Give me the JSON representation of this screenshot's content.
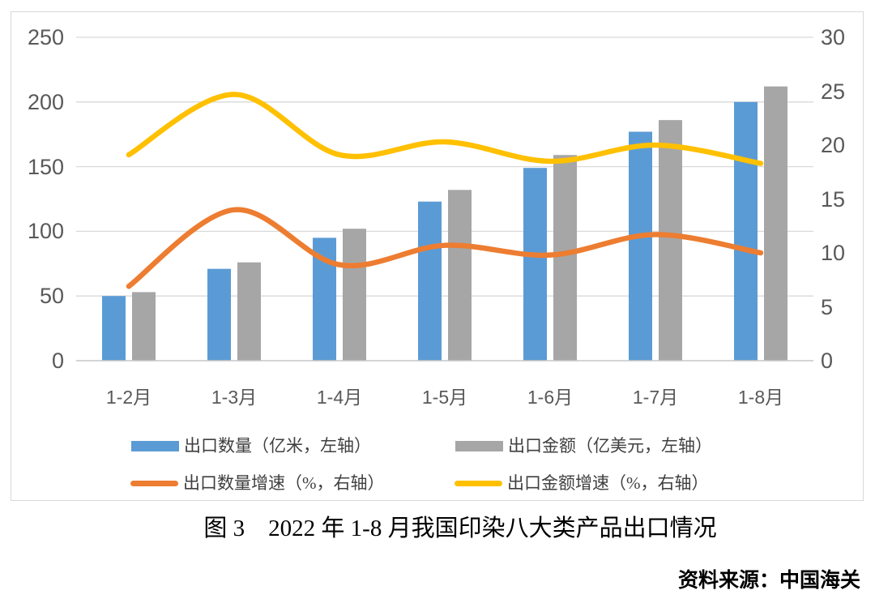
{
  "figure": {
    "caption": "图 3　2022 年 1-8 月我国印染八大类产品出口情况",
    "source": "资料来源：中国海关"
  },
  "chart_data": {
    "type": "combo-bar-line",
    "categories": [
      "1-2月",
      "1-3月",
      "1-4月",
      "1-5月",
      "1-6月",
      "1-7月",
      "1-8月"
    ],
    "series": [
      {
        "name": "出口数量（亿米，左轴）",
        "type": "bar",
        "axis": "left",
        "color": "#5B9BD5",
        "values": [
          50,
          71,
          95,
          123,
          149,
          177,
          200
        ]
      },
      {
        "name": "出口金额（亿美元，左轴）",
        "type": "bar",
        "axis": "left",
        "color": "#A6A6A6",
        "values": [
          53,
          76,
          102,
          132,
          159,
          186,
          212
        ]
      },
      {
        "name": "出口数量增速（%，右轴）",
        "type": "line",
        "axis": "right",
        "color": "#ED7D31",
        "values": [
          6.9,
          14.0,
          8.9,
          10.7,
          9.8,
          11.7,
          10.0
        ]
      },
      {
        "name": "出口金额增速（%，右轴）",
        "type": "line",
        "axis": "right",
        "color": "#FFC000",
        "values": [
          19.1,
          24.7,
          19.1,
          20.3,
          18.5,
          20.0,
          18.3
        ]
      }
    ],
    "left_axis": {
      "min": 0,
      "max": 250,
      "step": 50,
      "ticks": [
        "250",
        "200",
        "150",
        "100",
        "50",
        "0"
      ]
    },
    "right_axis": {
      "min": 0,
      "max": 30,
      "step": 5,
      "ticks": [
        "30",
        "25",
        "20",
        "15",
        "10",
        "5",
        "0"
      ]
    },
    "grid": true,
    "legend_position": "bottom",
    "colors": {
      "gridline": "#D9D9D9",
      "axis_line": "#C6C6C6",
      "axis_label": "#595959",
      "legend_text": "#3F3F3F"
    }
  }
}
